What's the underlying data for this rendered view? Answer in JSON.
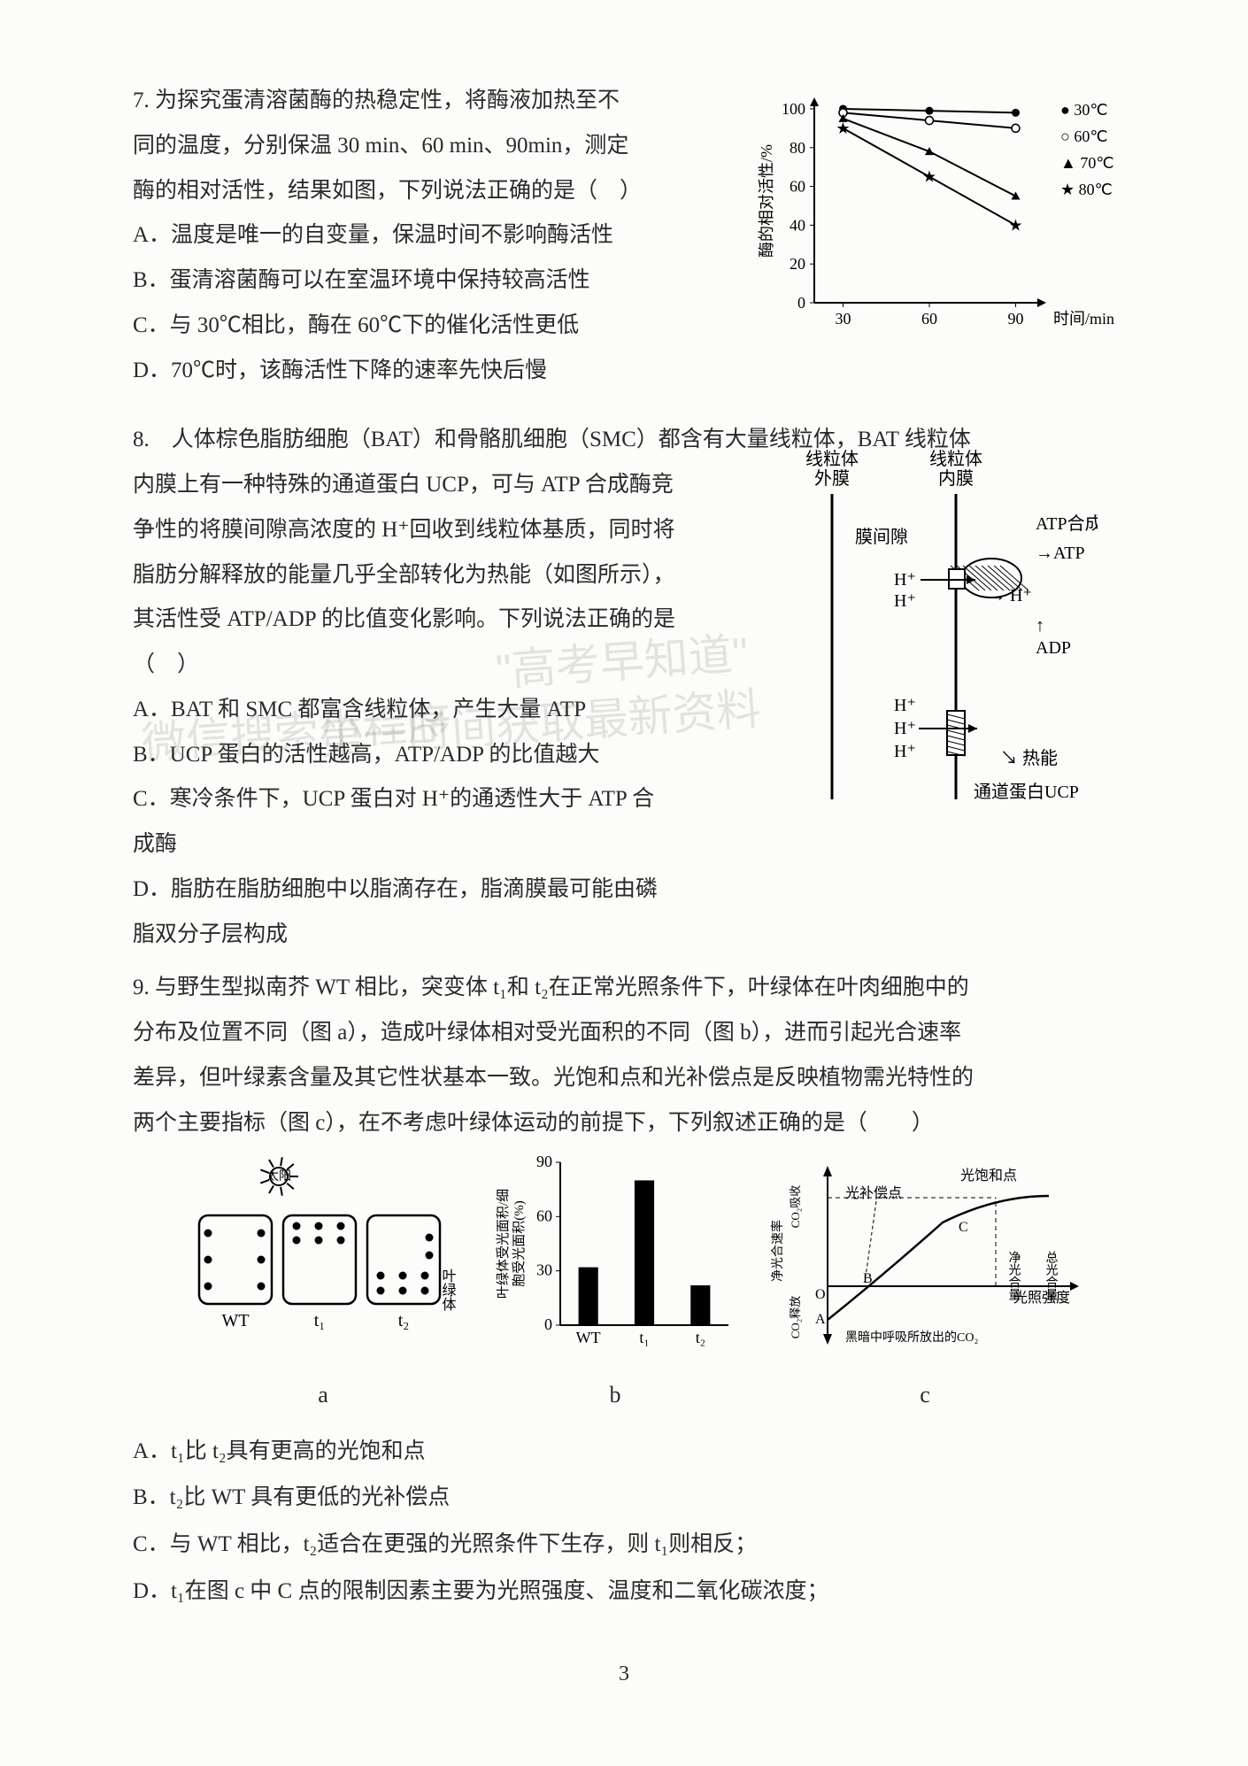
{
  "page_number": "3",
  "watermarks": [
    "微信搜索小程序",
    "\"高考早知道\"",
    "第一时间获取最新资料"
  ],
  "q7": {
    "stem_lines": [
      "7. 为探究蛋清溶菌酶的热稳定性，将酶液加热至不",
      "同的温度，分别保温 30 min、60 min、90min，测定",
      "酶的相对活性，结果如图，下列说法正确的是（　）",
      "A．温度是唯一的自变量，保温时间不影响酶活性",
      "B．蛋清溶菌酶可以在室温环境中保持较高活性",
      "C．与 30℃相比，酶在 60℃下的催化活性更低",
      "D．70℃时，该酶活性下降的速率先快后慢"
    ],
    "chart": {
      "type": "line",
      "xlabel": "时间/min",
      "ylabel": "酶的相对活性/%",
      "xticks": [
        30,
        60,
        90
      ],
      "yticks": [
        0,
        20,
        40,
        60,
        80,
        100
      ],
      "xlim": [
        20,
        100
      ],
      "ylim": [
        0,
        105
      ],
      "series": [
        {
          "name": "30℃",
          "marker": "circle-filled",
          "color": "#000000",
          "points": [
            [
              30,
              100
            ],
            [
              60,
              99
            ],
            [
              90,
              98
            ]
          ]
        },
        {
          "name": "60℃",
          "marker": "circle-open",
          "color": "#000000",
          "points": [
            [
              30,
              98
            ],
            [
              60,
              94
            ],
            [
              90,
              90
            ]
          ]
        },
        {
          "name": "70℃",
          "marker": "triangle",
          "color": "#000000",
          "points": [
            [
              30,
              95
            ],
            [
              60,
              78
            ],
            [
              90,
              55
            ]
          ]
        },
        {
          "name": "80℃",
          "marker": "star",
          "color": "#000000",
          "points": [
            [
              30,
              90
            ],
            [
              60,
              65
            ],
            [
              90,
              40
            ]
          ]
        }
      ],
      "legend_labels": [
        "30℃",
        "60℃",
        "70℃",
        "80℃"
      ],
      "legend_markers": [
        "●",
        "○",
        "▲",
        "★"
      ],
      "axis_color": "#000000",
      "background": "#fcfcfa",
      "font_size": 18
    }
  },
  "q8": {
    "stem_lines_narrow": [
      "8.　人体棕色脂肪细胞（BAT）和骨骼肌细胞（SMC）都含有大量线粒体，BAT 线粒体",
      "内膜上有一种特殊的通道蛋白 UCP，可与 ATP 合成酶竞",
      "争性的将膜间隙高浓度的 H⁺回收到线粒体基质，同时将",
      "脂肪分解释放的能量几乎全部转化为热能（如图所示），",
      "其活性受 ATP/ADP 的比值变化影响。下列说法正确的是",
      "（　）",
      "A．BAT 和 SMC 都富含线粒体，产生大量 ATP",
      "B．UCP 蛋白的活性越高，ATP/ADP 的比值越大",
      "C．寒冷条件下，UCP 蛋白对 H⁺的通透性大于 ATP 合",
      "成酶"
    ],
    "stem_lines_full": [
      "D．脂肪在脂肪细胞中以脂滴存在，脂滴膜最可能由磷",
      "脂双分子层构成"
    ],
    "diagram": {
      "type": "schematic",
      "labels": {
        "outer_membrane": "线粒体\n外膜",
        "inner_membrane": "线粒体\n内膜",
        "intermembrane": "膜间隙",
        "atp_synthase": "ATP合成酶",
        "atp": "ATP",
        "adp": "ADP",
        "hplus": "H⁺",
        "heat": "热能",
        "ucp": "通道蛋白UCP"
      },
      "colors": {
        "line": "#000000",
        "fill_hatch": "#000000",
        "background": "#fcfcfa"
      },
      "font_size": 20
    }
  },
  "q9": {
    "stem_lines": [
      "9. 与野生型拟南芥 WT 相比，突变体 t₁和 t₂在正常光照条件下，叶绿体在叶肉细胞中的",
      "分布及位置不同（图 a），造成叶绿体相对受光面积的不同（图 b），进而引起光合速率",
      "差异，但叶绿素含量及其它性状基本一致。光饱和点和光补偿点是反映植物需光特性的",
      "两个主要指标（图 c），在不考虑叶绿体运动的前提下，下列叙述正确的是（　　）"
    ],
    "fig_a": {
      "type": "schematic-cells",
      "label": "a",
      "sun_label": "太阳",
      "cell_labels": [
        "WT",
        "t₁",
        "t₂"
      ],
      "annotation": "叶绿体",
      "colors": {
        "line": "#000000",
        "dot": "#000000"
      },
      "font_size": 20
    },
    "fig_b": {
      "type": "bar",
      "label": "b",
      "ylabel": "叶绿体受光面积/细\n胞受光面积(%)",
      "categories": [
        "WT",
        "t₁",
        "t₂"
      ],
      "values": [
        32,
        80,
        22
      ],
      "yticks": [
        0,
        30,
        60,
        90
      ],
      "ylim": [
        0,
        90
      ],
      "bar_color": "#000000",
      "bar_width": 0.35,
      "font_size": 18
    },
    "fig_c": {
      "type": "curve-schematic",
      "label": "c",
      "ylabel": "净光合速率",
      "xlabel": "光照强度",
      "annotations": {
        "sat": "光饱和点",
        "comp": "光补偿点",
        "net": "净光合量",
        "gross": "总光合量",
        "dark": "黑暗中呼吸所放出的CO₂",
        "A": "A",
        "B": "B",
        "C": "C",
        "O": "O"
      },
      "axis_note_top": "CO₂吸收",
      "axis_note_bottom": "CO₂释放",
      "colors": {
        "line": "#000000"
      },
      "font_size": 16
    },
    "options": [
      "A．t₁比 t₂具有更高的光饱和点",
      "B．t₂比 WT 具有更低的光补偿点",
      "C．与 WT 相比，t₂适合在更强的光照条件下生存，则 t₁则相反；",
      "D．t₁在图 c 中 C 点的限制因素主要为光照强度、温度和二氧化碳浓度；"
    ]
  }
}
